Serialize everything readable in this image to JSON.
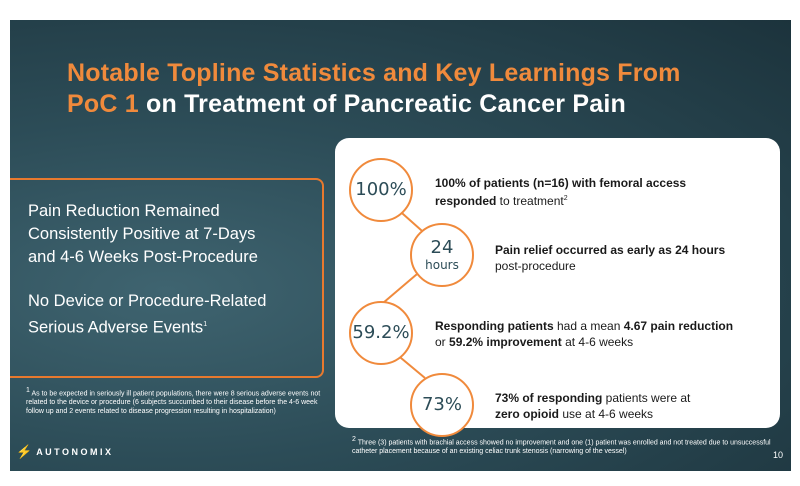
{
  "title": {
    "line1": "Notable Topline Statistics and Key Learnings From",
    "line2_orange": "PoC 1",
    "line2_white": " on Treatment of Pancreatic Cancer Pain"
  },
  "left_panel": {
    "heading1": [
      "Pain Reduction Remained",
      "Consistently Positive at 7-Days",
      "and 4-6 Weeks Post-Procedure"
    ],
    "heading2": [
      "No Device or Procedure-Related",
      "Serious Adverse Events"
    ],
    "heading2_sup": "1"
  },
  "footnote1": {
    "sup": "1",
    "text": "As to be expected in seriously ill patient populations, there were 8 serious adverse events not related to the device or procedure (6 subjects succumbed to their disease before the 4-6 week follow up and 2 events related to disease progression resulting in hospitalization)"
  },
  "stats": [
    {
      "value": "100%",
      "unit": "",
      "bold1": "100% of patients (n=16) with femoral access",
      "bold2": "responded",
      "rest": " to treatment",
      "sup": "2"
    },
    {
      "value": "24",
      "unit": "hours",
      "bold1": "Pain relief occurred as early as 24 hours",
      "rest": "post-procedure"
    },
    {
      "value": "59.2%",
      "unit": "",
      "bold_a": "Responding patients",
      "mid_a": " had a mean ",
      "bold_b": "4.67 pain reduction",
      "pre_c": "or ",
      "bold_c": "59.2% improvement",
      "post_c": " at 4-6 weeks"
    },
    {
      "value": "73%",
      "unit": "",
      "bold_a": "73% of responding",
      "mid_a": " patients were at",
      "bold_b": "zero opioid",
      "post_b": " use at 4-6 weeks"
    }
  ],
  "footnote2": {
    "sup": "2",
    "text": "Three (3) patients with brachial access showed no improvement and one (1) patient was enrolled and not treated due to unsuccessful catheter placement because of an existing celiac trunk stenosis (narrowing of the vessel)"
  },
  "logo": {
    "text": "AUTONOMIX"
  },
  "page_number": "10",
  "colors": {
    "accent": "#f08a3c",
    "background": "#2c4c57",
    "card": "#ffffff"
  }
}
